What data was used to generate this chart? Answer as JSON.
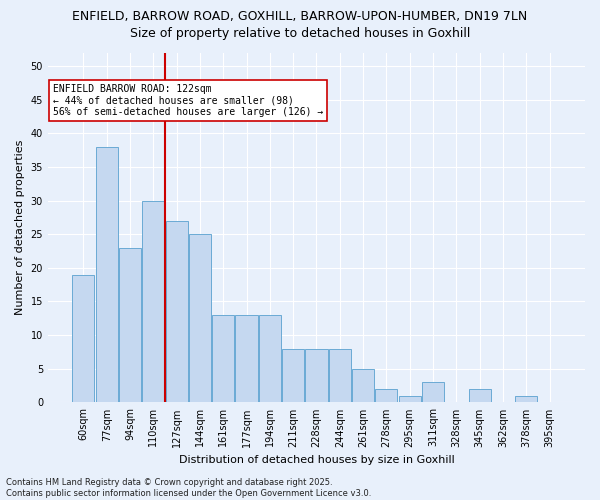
{
  "title_line1": "ENFIELD, BARROW ROAD, GOXHILL, BARROW-UPON-HUMBER, DN19 7LN",
  "title_line2": "Size of property relative to detached houses in Goxhill",
  "xlabel": "Distribution of detached houses by size in Goxhill",
  "ylabel": "Number of detached properties",
  "categories": [
    "60sqm",
    "77sqm",
    "94sqm",
    "110sqm",
    "127sqm",
    "144sqm",
    "161sqm",
    "177sqm",
    "194sqm",
    "211sqm",
    "228sqm",
    "244sqm",
    "261sqm",
    "278sqm",
    "295sqm",
    "311sqm",
    "328sqm",
    "345sqm",
    "362sqm",
    "378sqm",
    "395sqm"
  ],
  "values": [
    19,
    38,
    23,
    30,
    27,
    25,
    13,
    13,
    13,
    8,
    8,
    8,
    5,
    2,
    1,
    3,
    0,
    2,
    0,
    1,
    0
  ],
  "bar_color": "#c5d8f0",
  "bar_edge_color": "#6aaad4",
  "vline_color": "#cc0000",
  "vline_x_index": 3.5,
  "annotation_title": "ENFIELD BARROW ROAD: 122sqm",
  "annotation_line2": "← 44% of detached houses are smaller (98)",
  "annotation_line3": "56% of semi-detached houses are larger (126) →",
  "annotation_box_color": "white",
  "annotation_box_edge": "#cc0000",
  "ylim": [
    0,
    52
  ],
  "yticks": [
    0,
    5,
    10,
    15,
    20,
    25,
    30,
    35,
    40,
    45,
    50
  ],
  "footer_line1": "Contains HM Land Registry data © Crown copyright and database right 2025.",
  "footer_line2": "Contains public sector information licensed under the Open Government Licence v3.0.",
  "bg_color": "#e8f0fb",
  "grid_color": "#ffffff",
  "title_fontsize": 9,
  "subtitle_fontsize": 9,
  "xlabel_fontsize": 8,
  "ylabel_fontsize": 8,
  "tick_fontsize": 7,
  "annotation_fontsize": 7,
  "footer_fontsize": 6
}
